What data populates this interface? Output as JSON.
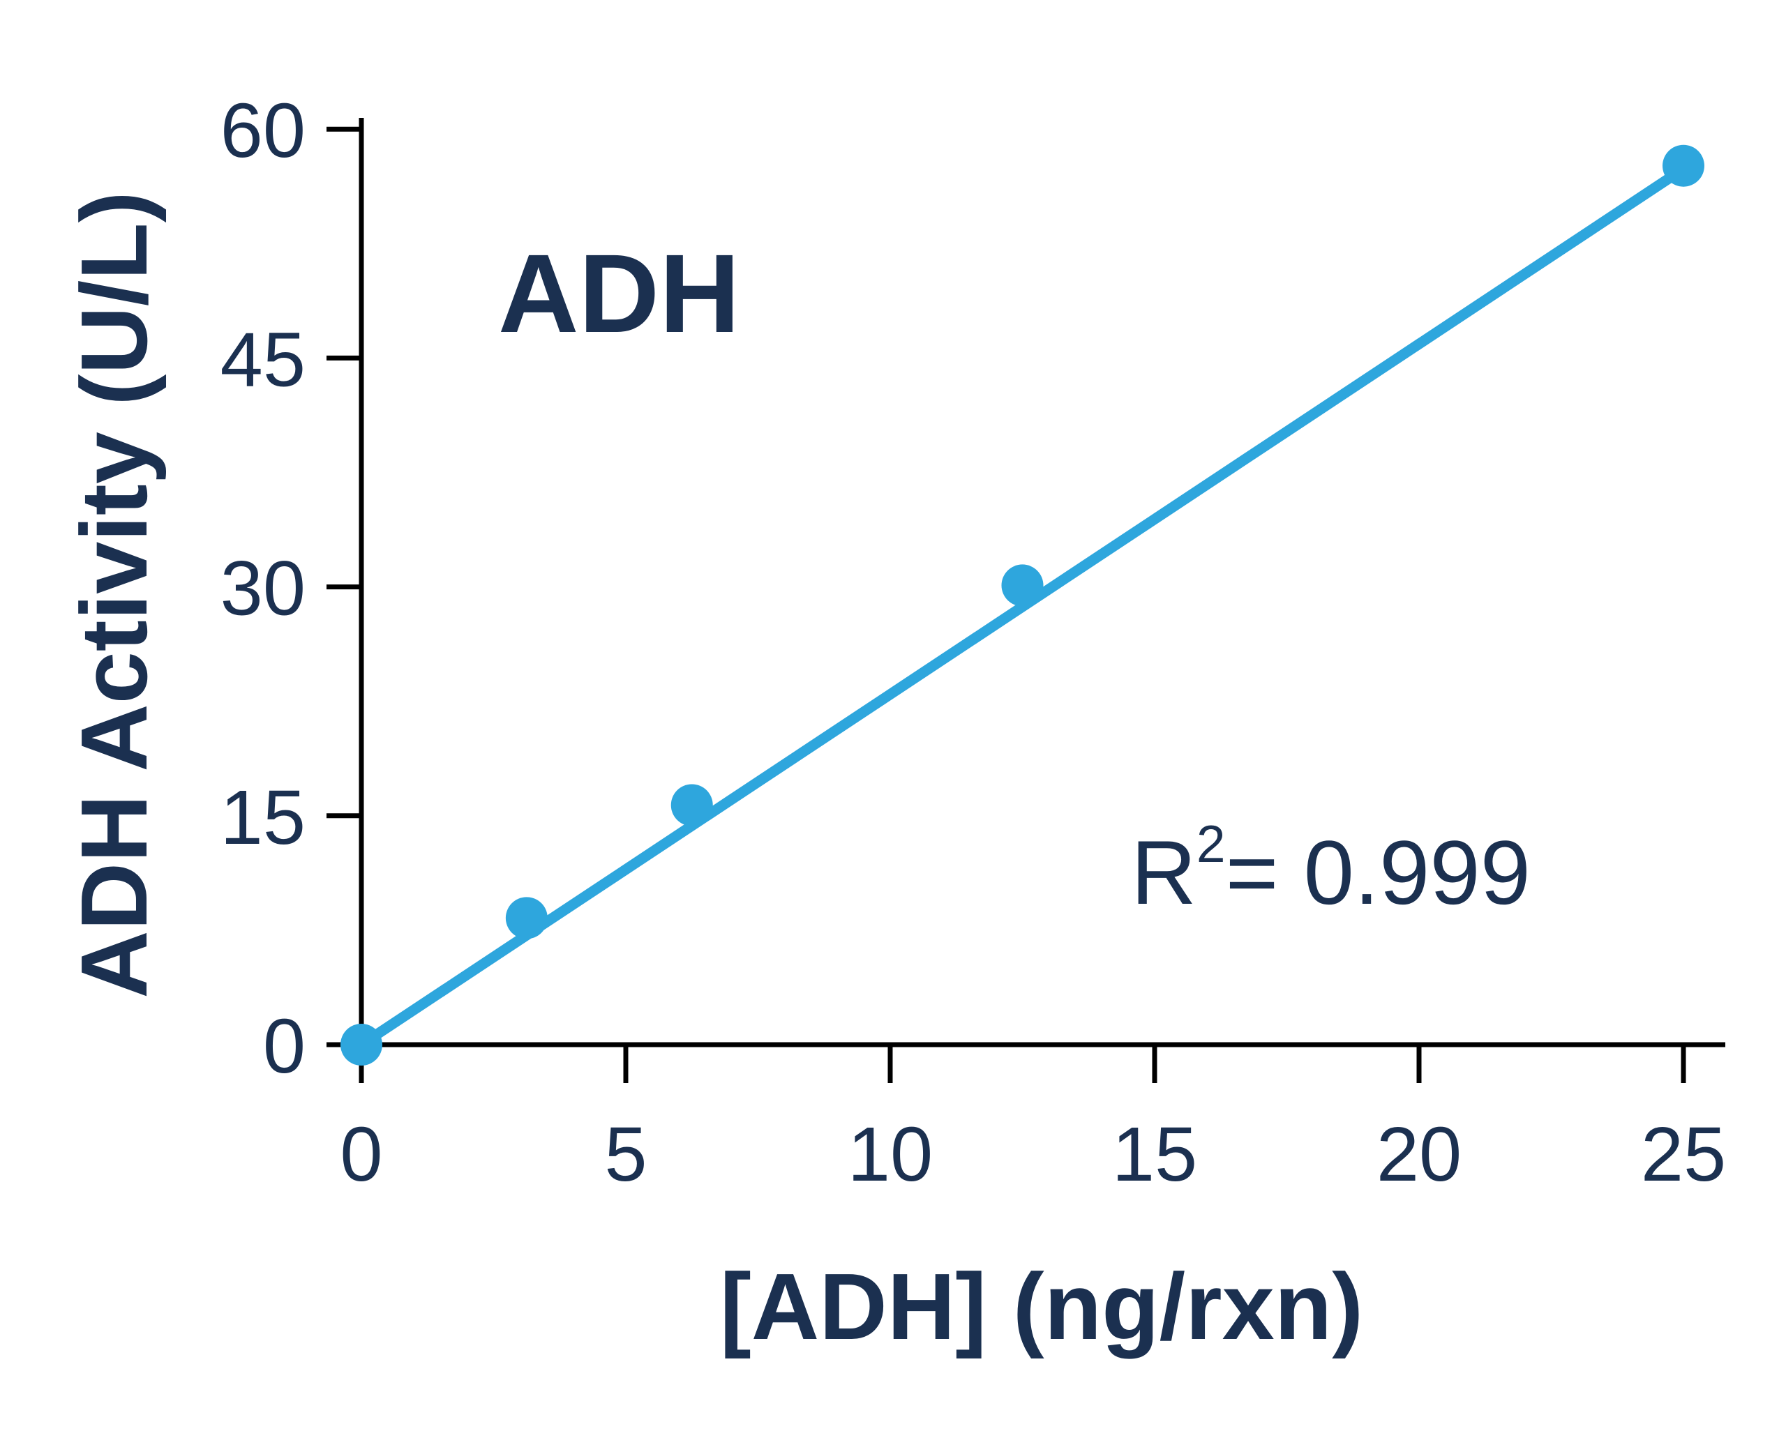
{
  "chart_data": {
    "type": "scatter",
    "title": "ADH",
    "xlabel": "[ADH] (ng/rxn)",
    "ylabel": "ADH Activity (U/L)",
    "xlim": [
      0,
      25
    ],
    "ylim": [
      0,
      60
    ],
    "x_ticks": [
      "0",
      "5",
      "10",
      "15",
      "20",
      "25"
    ],
    "y_ticks": [
      "0",
      "15",
      "30",
      "45",
      "60"
    ],
    "grid": false,
    "points": [
      {
        "x": 0,
        "y": 0
      },
      {
        "x": 3.125,
        "y": 8.3
      },
      {
        "x": 6.25,
        "y": 15.7
      },
      {
        "x": 12.5,
        "y": 30.1
      },
      {
        "x": 25,
        "y": 57.6
      }
    ],
    "fit_line": {
      "x": [
        0,
        25
      ],
      "y": [
        0,
        57.4
      ]
    },
    "annotation": {
      "r_label": "R",
      "r_sup": "2",
      "r_value": "= 0.999"
    },
    "colors": {
      "series": "#2ea6dd",
      "text": "#1b3050",
      "axis": "#000000"
    }
  }
}
